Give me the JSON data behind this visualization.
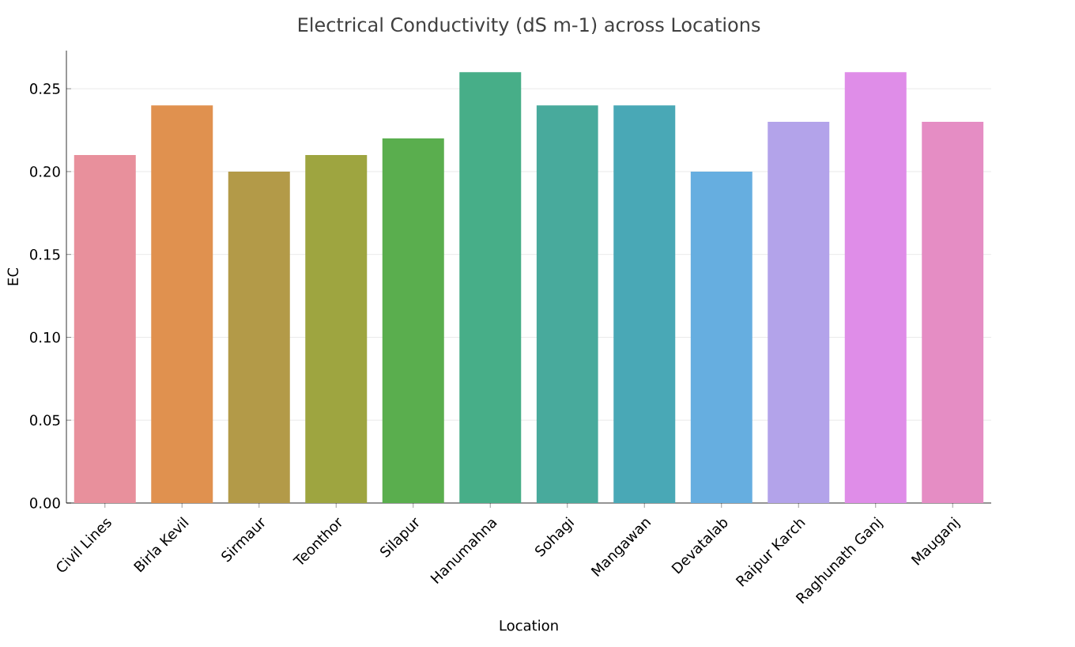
{
  "chart_data": {
    "type": "bar",
    "title": "Electrical Conductivity (dS m-1) across Locations",
    "xlabel": "Location",
    "ylabel": "EC",
    "categories": [
      "Civil Lines",
      "Birla Kevil",
      "Sirmaur",
      "Teonthor",
      "Silapur",
      "Hanumahna",
      "Sohagi",
      "Mangawan",
      "Devatalab",
      "Raipur Karch",
      "Raghunath Ganj",
      "Mauganj"
    ],
    "values": [
      0.21,
      0.24,
      0.2,
      0.21,
      0.22,
      0.26,
      0.24,
      0.24,
      0.2,
      0.23,
      0.26,
      0.23
    ],
    "colors": [
      "#e8909c",
      "#e0914f",
      "#b39a48",
      "#9ea540",
      "#5aae4e",
      "#47ae88",
      "#48aa9c",
      "#49a8b6",
      "#66aee0",
      "#b3a3ea",
      "#df8de8",
      "#e58dc4"
    ],
    "ylim": [
      0,
      0.273
    ],
    "yticks": [
      {
        "value": 0,
        "label": "0.00"
      },
      {
        "value": 0.05,
        "label": "0.05"
      },
      {
        "value": 0.1,
        "label": "0.10"
      },
      {
        "value": 0.15,
        "label": "0.15"
      },
      {
        "value": 0.2,
        "label": "0.20"
      },
      {
        "value": 0.25,
        "label": "0.25"
      }
    ],
    "grid": "y"
  }
}
